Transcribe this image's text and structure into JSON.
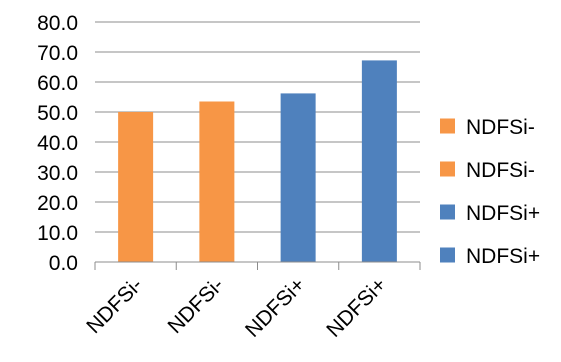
{
  "chart_data": {
    "type": "bar",
    "categories": [
      "NDFSi-",
      "NDFSi-",
      "NDFSi+",
      "NDFSi+"
    ],
    "values": [
      50.0,
      53.5,
      56.2,
      67.2
    ],
    "bar_colors": [
      "#F79646",
      "#F79646",
      "#4F81BD",
      "#4F81BD"
    ],
    "ylim": [
      0,
      80
    ],
    "yticks": [
      "0.0",
      "10.0",
      "20.0",
      "30.0",
      "40.0",
      "50.0",
      "60.0",
      "70.0",
      "80.0"
    ],
    "grid": true,
    "legend": {
      "position": "right",
      "entries": [
        {
          "label": "NDFSi-",
          "color": "#F79646"
        },
        {
          "label": "NDFSi-",
          "color": "#F79646"
        },
        {
          "label": "NDFSi+",
          "color": "#4F81BD"
        },
        {
          "label": "NDFSi+",
          "color": "#4F81BD"
        }
      ]
    },
    "title": "",
    "xlabel": "",
    "ylabel": ""
  }
}
